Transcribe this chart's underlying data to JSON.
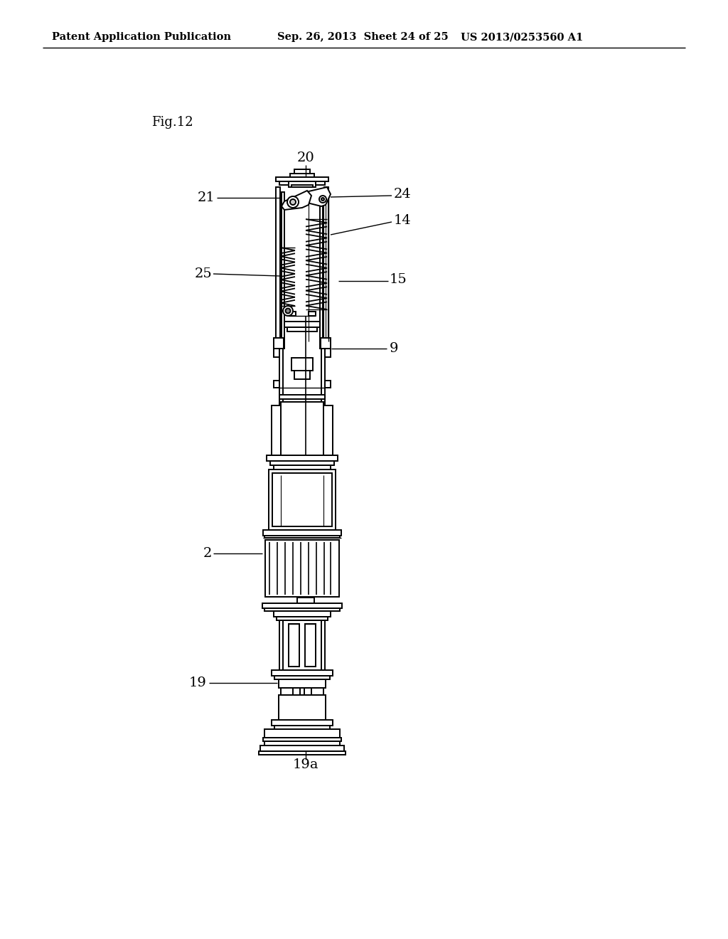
{
  "background_color": "#ffffff",
  "header_left": "Patent Application Publication",
  "header_mid": "Sep. 26, 2013  Sheet 24 of 25",
  "header_right": "US 2013/0253560 A1",
  "fig_label": "Fig.12",
  "line_color": "#000000",
  "lw": 1.4
}
